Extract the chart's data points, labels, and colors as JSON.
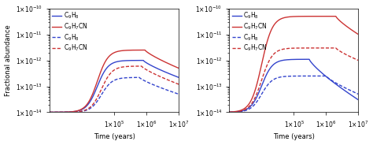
{
  "left_legend": [
    "C$_9$H$_8$",
    "C$_9$H$_7$CN",
    "C$_9$H$_8$",
    "C$_9$H$_7$CN"
  ],
  "right_legend": [
    "C$_9$H$_8$",
    "C$_9$H$_7$CN",
    "C$_9$H$_8$",
    "C$_9$H$_7$CN"
  ],
  "xlabel": "Time (years)",
  "ylabel": "Fractional abundance",
  "xlim": [
    1000.0,
    10000000.0
  ],
  "ylim": [
    1e-14,
    1e-10
  ],
  "color_blue": "#3344cc",
  "color_red": "#cc3333",
  "label_fontsize": 6,
  "tick_fontsize": 5.5,
  "legend_fontsize": 5.5,
  "lw": 1.0
}
